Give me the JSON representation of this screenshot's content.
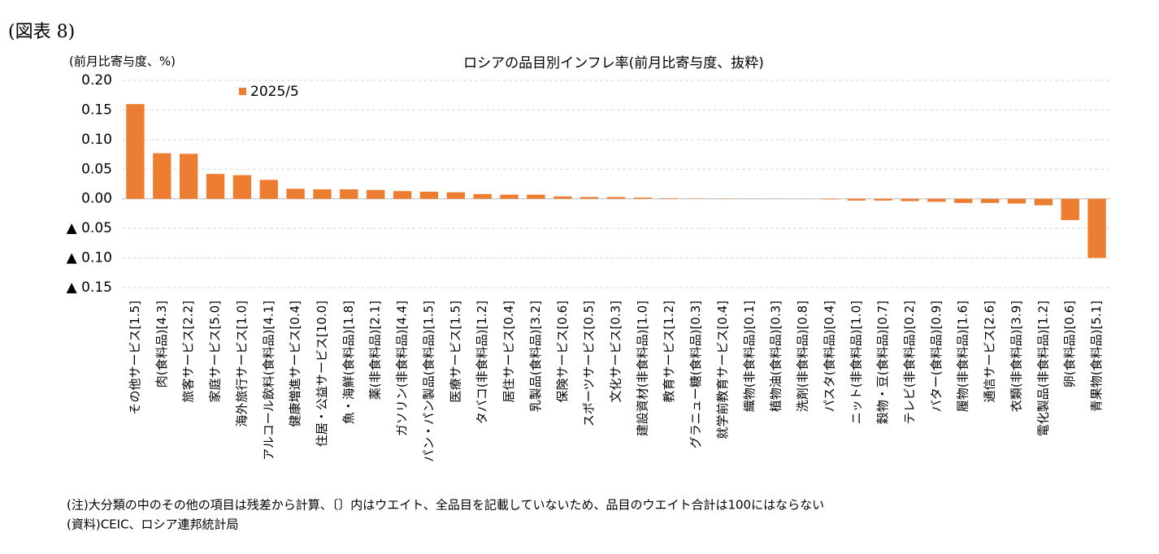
{
  "figure_label": "(図表 8)",
  "chart_data": {
    "type": "bar",
    "title": "ロシアの品目別インフレ率(前月比寄与度、抜粋)",
    "y_axis_label": "(前月比寄与度、%)",
    "categories": [
      "その他サービス[1.5]",
      "肉(食料品)[4.3]",
      "旅客サービス[2.2]",
      "家庭サービス[5.0]",
      "海外旅行サービス[1.0]",
      "アルコール飲料(食料品)[4.1]",
      "健康増進サービス[0.4]",
      "住居・公益サービス[10.0]",
      "魚・海鮮(食料品)[1.8]",
      "薬(非食料品)[2.1]",
      "ガソリン(非食料品)[4.4]",
      "パン・パン製品(食料品)[1.5]",
      "医療サービス[1.5]",
      "タバコ(非食料品)[1.2]",
      "居住サービス[0.4]",
      "乳製品(食料品)[3.2]",
      "保険サービス[0.6]",
      "スポーツサービス[0.5]",
      "文化サービス[0.3]",
      "建設資材(非食料品)[1.0]",
      "教育サービス[1.2]",
      "グラニュー糖(食料品)[0.3]",
      "就学前教育サービス[0.4]",
      "織物(非食料品)[0.1]",
      "植物油(食料品)[0.3]",
      "洗剤(非食料品)[0.8]",
      "パスタ(食料品)[0.4]",
      "ニット(非食料品)[1.0]",
      "穀物・豆(食料品)[0.7]",
      "テレビ(非食料品)[0.2]",
      "バター(食料品)[0.9]",
      "履物(非食料品)[1.6]",
      "通信サービス[2.6]",
      "衣類(非食料品)[3.9]",
      "電化製品(非食料品)[1.2]",
      "卵(食料品)[0.6]",
      "青果物(食料品)[5.1]"
    ],
    "series": [
      {
        "name": "2025/5",
        "color": "#ed7d31",
        "values": [
          0.16,
          0.077,
          0.076,
          0.042,
          0.04,
          0.032,
          0.017,
          0.016,
          0.016,
          0.015,
          0.013,
          0.012,
          0.011,
          0.008,
          0.007,
          0.007,
          0.004,
          0.003,
          0.003,
          0.002,
          0.001,
          0.0005,
          0.0003,
          0.0002,
          0.0001,
          0,
          -0.001,
          -0.003,
          -0.003,
          -0.004,
          -0.005,
          -0.007,
          -0.007,
          -0.008,
          -0.011,
          -0.036,
          -0.1
        ]
      }
    ],
    "ylim": [
      -0.15,
      0.2
    ],
    "yticks": [
      {
        "value": 0.2,
        "label": "0.20"
      },
      {
        "value": 0.15,
        "label": "0.15"
      },
      {
        "value": 0.1,
        "label": "0.10"
      },
      {
        "value": 0.05,
        "label": "0.05"
      },
      {
        "value": 0,
        "label": "0.00"
      },
      {
        "value": -0.05,
        "label": "▲ 0.05"
      },
      {
        "value": -0.1,
        "label": "▲ 0.10"
      },
      {
        "value": -0.15,
        "label": "▲ 0.15"
      }
    ],
    "grid": true
  },
  "notes": [
    "(注)大分類の中のその他の項目は残差から計算、〔〕内はウエイト、全品目を記載していないため、品目のウエイト合計は100にはならない",
    "(資料)CEIC、ロシア連邦統計局"
  ]
}
